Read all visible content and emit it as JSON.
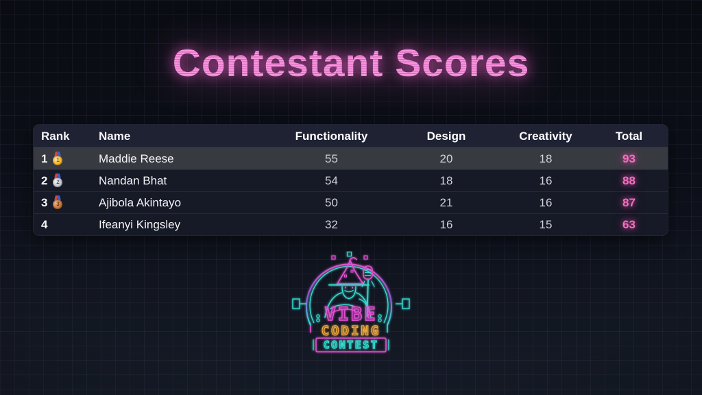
{
  "title": "Contestant Scores",
  "table": {
    "columns": [
      "Rank",
      "Name",
      "Functionality",
      "Design",
      "Creativity",
      "Total"
    ],
    "rows": [
      {
        "rank": "1",
        "medal_icon": "gold-medal-icon",
        "medal_number": "1",
        "name": "Maddie Reese",
        "functionality": "55",
        "design": "20",
        "creativity": "18",
        "total": "93",
        "highlight": true
      },
      {
        "rank": "2",
        "medal_icon": "silver-medal-icon",
        "medal_number": "2",
        "name": "Nandan Bhat",
        "functionality": "54",
        "design": "18",
        "creativity": "16",
        "total": "88",
        "highlight": false
      },
      {
        "rank": "3",
        "medal_icon": "bronze-medal-icon",
        "medal_number": "3",
        "name": "Ajibola Akintayo",
        "functionality": "50",
        "design": "21",
        "creativity": "16",
        "total": "87",
        "highlight": false
      },
      {
        "rank": "4",
        "medal_icon": "",
        "medal_number": "",
        "name": "Ifeanyi Kingsley",
        "functionality": "32",
        "design": "16",
        "creativity": "15",
        "total": "63",
        "highlight": false
      }
    ]
  },
  "logo": {
    "emblem": "wizard-with-microphone-icon",
    "line1": "VIBE",
    "line2": "CODING",
    "line3": "CONTEST"
  },
  "colors": {
    "background_top": "#090c12",
    "background_bottom": "#151b27",
    "title_pink": "#f795dd",
    "total_pink": "#f36fbe",
    "header_row_bg": "#1e2233",
    "highlight_row_bg": "#373a41",
    "neon_cyan": "#35ddd3",
    "neon_magenta": "#e44fd2",
    "neon_orange": "#f0a83c"
  }
}
